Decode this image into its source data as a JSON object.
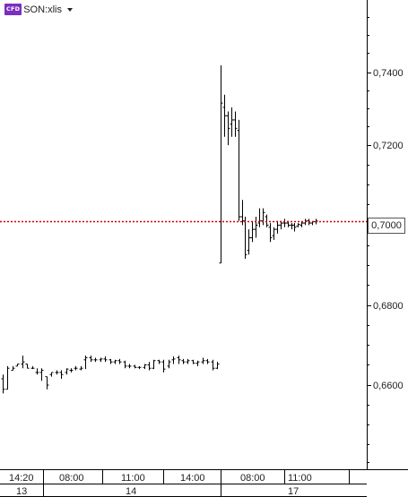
{
  "symbol": {
    "badge": "CFD",
    "name": "SON:xlis",
    "dropdown_icon": "triangle-down-icon"
  },
  "colors": {
    "background": "#ffffff",
    "price_bars": "#000000",
    "current_price_line": "#cc0000",
    "axis_lines": "#000000",
    "badge": "#7b2fbe"
  },
  "price_axis": {
    "ticks": [
      "0,7400",
      "0,7200",
      "0,6800",
      "0,6600"
    ],
    "current_price": "0,7000"
  },
  "time_axis": {
    "time_labels": [
      "14:20",
      "08:00",
      "11:00",
      "14:00",
      "08:00",
      "11:00"
    ],
    "date_labels": [
      "13",
      "14",
      "17"
    ]
  },
  "chart_data": {
    "type": "ohlc",
    "y_range": [
      0.641,
      0.7525
    ],
    "current_price": 0.7,
    "bars": [
      [
        0.6625,
        0.6635,
        0.659,
        0.66
      ],
      [
        0.66,
        0.6655,
        0.66,
        0.665
      ],
      [
        0.6645,
        0.6655,
        0.6645,
        0.665
      ],
      [
        0.6655,
        0.666,
        0.6655,
        0.666
      ],
      [
        0.666,
        0.668,
        0.665,
        0.6665
      ],
      [
        0.666,
        0.666,
        0.665,
        0.665
      ],
      [
        0.665,
        0.6655,
        0.6648,
        0.665
      ],
      [
        0.664,
        0.665,
        0.6635,
        0.664
      ],
      [
        0.664,
        0.665,
        0.662,
        0.6645
      ],
      [
        0.663,
        0.663,
        0.66,
        0.661
      ],
      [
        0.6635,
        0.664,
        0.663,
        0.664
      ],
      [
        0.664,
        0.6645,
        0.6635,
        0.664
      ],
      [
        0.664,
        0.6645,
        0.6625,
        0.6635
      ],
      [
        0.664,
        0.665,
        0.6635,
        0.6648
      ],
      [
        0.6645,
        0.665,
        0.664,
        0.6645
      ],
      [
        0.665,
        0.6655,
        0.6645,
        0.665
      ],
      [
        0.6648,
        0.6655,
        0.6645,
        0.665
      ],
      [
        0.667,
        0.668,
        0.6648,
        0.6675
      ],
      [
        0.6675,
        0.668,
        0.6665,
        0.667
      ],
      [
        0.667,
        0.6675,
        0.6665,
        0.667
      ],
      [
        0.667,
        0.6675,
        0.6665,
        0.6672
      ],
      [
        0.6672,
        0.6678,
        0.6665,
        0.667
      ],
      [
        0.667,
        0.6672,
        0.666,
        0.6665
      ],
      [
        0.6665,
        0.667,
        0.666,
        0.6668
      ],
      [
        0.6668,
        0.6672,
        0.666,
        0.6665
      ],
      [
        0.6665,
        0.6668,
        0.665,
        0.6655
      ],
      [
        0.6655,
        0.666,
        0.665,
        0.6655
      ],
      [
        0.6655,
        0.6658,
        0.665,
        0.6652
      ],
      [
        0.6652,
        0.6655,
        0.6648,
        0.6652
      ],
      [
        0.6652,
        0.666,
        0.6648,
        0.6658
      ],
      [
        0.6658,
        0.6665,
        0.6645,
        0.665
      ],
      [
        0.665,
        0.667,
        0.6648,
        0.6668
      ],
      [
        0.6668,
        0.667,
        0.666,
        0.6665
      ],
      [
        0.6665,
        0.667,
        0.664,
        0.6648
      ],
      [
        0.6655,
        0.667,
        0.665,
        0.6665
      ],
      [
        0.667,
        0.6678,
        0.666,
        0.6672
      ],
      [
        0.6675,
        0.668,
        0.666,
        0.667
      ],
      [
        0.6668,
        0.6672,
        0.666,
        0.6665
      ],
      [
        0.6665,
        0.6672,
        0.666,
        0.6668
      ],
      [
        0.6668,
        0.667,
        0.666,
        0.6662
      ],
      [
        0.6662,
        0.6668,
        0.6655,
        0.6665
      ],
      [
        0.6665,
        0.6675,
        0.666,
        0.6668
      ],
      [
        0.6668,
        0.6672,
        0.666,
        0.6665
      ],
      [
        0.6665,
        0.667,
        0.6645,
        0.665
      ],
      [
        0.665,
        0.6665,
        0.6648,
        0.666
      ],
      [
        0.69,
        0.737,
        0.69,
        0.728
      ],
      [
        0.727,
        0.73,
        0.72,
        0.725
      ],
      [
        0.725,
        0.726,
        0.718,
        0.722
      ],
      [
        0.723,
        0.727,
        0.72,
        0.724
      ],
      [
        0.724,
        0.726,
        0.72,
        0.722
      ],
      [
        0.7215,
        0.724,
        0.7,
        0.701
      ],
      [
        0.701,
        0.705,
        0.699,
        0.7
      ],
      [
        0.7,
        0.701,
        0.691,
        0.692
      ],
      [
        0.693,
        0.698,
        0.692,
        0.696
      ],
      [
        0.696,
        0.7,
        0.695,
        0.698
      ],
      [
        0.698,
        0.701,
        0.696,
        0.699
      ],
      [
        0.6995,
        0.703,
        0.6985,
        0.7
      ],
      [
        0.7,
        0.703,
        0.699,
        0.702
      ],
      [
        0.701,
        0.7015,
        0.6985,
        0.699
      ],
      [
        0.6985,
        0.6995,
        0.695,
        0.696
      ],
      [
        0.6965,
        0.6985,
        0.6955,
        0.698
      ],
      [
        0.698,
        0.7,
        0.697,
        0.699
      ],
      [
        0.699,
        0.7,
        0.698,
        0.6995
      ],
      [
        0.6995,
        0.7005,
        0.6985,
        0.6995
      ],
      [
        0.6995,
        0.7,
        0.6985,
        0.699
      ],
      [
        0.699,
        0.6995,
        0.698,
        0.699
      ],
      [
        0.699,
        0.6995,
        0.6975,
        0.6985
      ],
      [
        0.6988,
        0.6995,
        0.6985,
        0.6992
      ],
      [
        0.699,
        0.6998,
        0.6985,
        0.6995
      ],
      [
        0.6995,
        0.7005,
        0.699,
        0.7
      ],
      [
        0.7,
        0.7005,
        0.699,
        0.6995
      ],
      [
        0.6995,
        0.7,
        0.699,
        0.6998
      ],
      [
        0.6998,
        0.7005,
        0.6992,
        0.7
      ]
    ]
  }
}
